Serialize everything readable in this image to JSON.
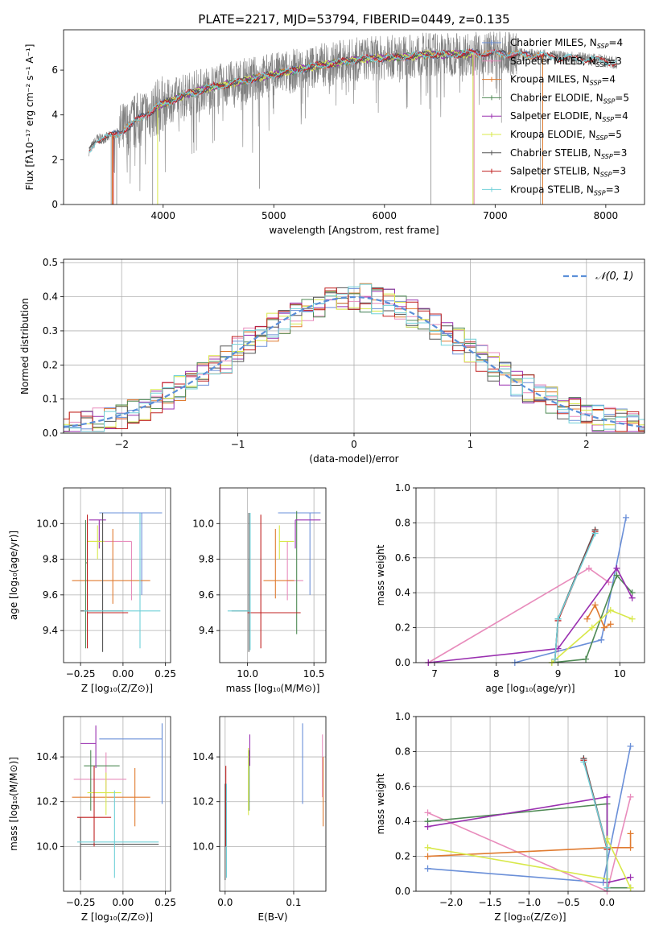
{
  "title": "PLATE=2217, MJD=53794, FIBERID=0449, z=0.135",
  "colors": {
    "chabrier_miles": "#6a8fd8",
    "salpeter_miles": "#e88cbc",
    "kroupa_miles": "#e07b30",
    "chabrier_elodie": "#4f8a55",
    "salpeter_elodie": "#9a30b0",
    "kroupa_elodie": "#d8e84a",
    "chabrier_stelib": "#555555",
    "salpeter_stelib": "#c02020",
    "kroupa_stelib": "#70d0d8",
    "data_spectrum": "#808080",
    "normal_curve": "#5b8fd8"
  },
  "chart_data": [
    {
      "id": "spectrum",
      "type": "line",
      "xlabel": "wavelength [Angstrom, rest frame]",
      "ylabel": "Flux [fλ10⁻¹⁷ erg cm⁻² s⁻¹ A⁻¹]",
      "xlim": [
        3100,
        8350
      ],
      "ylim": [
        0,
        7.8
      ],
      "xticks": [
        "4000",
        "5000",
        "6000",
        "7000",
        "8000"
      ],
      "yticks": [
        "0",
        "2",
        "4",
        "6"
      ],
      "legend_position": "upper-right",
      "data_x": [
        3330,
        3400,
        3500,
        3600,
        3700,
        3800,
        3900,
        4000,
        4200,
        4400,
        4600,
        4800,
        5000,
        5200,
        5400,
        5600,
        5800,
        6000,
        6200,
        6400,
        6600,
        6800,
        7000,
        7200,
        7400,
        7600,
        7800,
        8000,
        8100
      ],
      "data_y": [
        2.4,
        2.9,
        3.0,
        3.2,
        3.5,
        3.9,
        4.2,
        4.5,
        4.9,
        5.2,
        5.4,
        5.6,
        5.8,
        6.0,
        6.2,
        6.35,
        6.5,
        6.55,
        6.6,
        6.7,
        6.7,
        6.75,
        6.75,
        6.7,
        6.65,
        6.55,
        6.5,
        6.4,
        6.3
      ],
      "series": [
        {
          "name": "Chabrier MILES, N_SSP=4",
          "label_main": "Chabrier MILES, N",
          "label_sub": "SSP",
          "label_tail": "=4",
          "color_key": "chabrier_miles"
        },
        {
          "name": "Salpeter MILES, N_SSP=3",
          "label_main": "Salpeter MILES, N",
          "label_sub": "SSP",
          "label_tail": "=3",
          "color_key": "salpeter_miles"
        },
        {
          "name": "Kroupa MILES, N_SSP=4",
          "label_main": "Kroupa MILES, N",
          "label_sub": "SSP",
          "label_tail": "=4",
          "color_key": "kroupa_miles"
        },
        {
          "name": "Chabrier ELODIE, N_SSP=5",
          "label_main": "Chabrier ELODIE, N",
          "label_sub": "SSP",
          "label_tail": "=5",
          "color_key": "chabrier_elodie"
        },
        {
          "name": "Salpeter ELODIE, N_SSP=4",
          "label_main": "Salpeter ELODIE, N",
          "label_sub": "SSP",
          "label_tail": "=4",
          "color_key": "salpeter_elodie"
        },
        {
          "name": "Kroupa ELODIE, N_SSP=5",
          "label_main": "Kroupa ELODIE, N",
          "label_sub": "SSP",
          "label_tail": "=5",
          "color_key": "kroupa_elodie"
        },
        {
          "name": "Chabrier STELIB, N_SSP=3",
          "label_main": "Chabrier STELIB, N",
          "label_sub": "SSP",
          "label_tail": "=3",
          "color_key": "chabrier_stelib"
        },
        {
          "name": "Salpeter STELIB, N_SSP=3",
          "label_main": "Salpeter STELIB, N",
          "label_sub": "SSP",
          "label_tail": "=3",
          "color_key": "salpeter_stelib"
        },
        {
          "name": "Kroupa STELIB, N_SSP=3",
          "label_main": "Kroupa STELIB, N",
          "label_sub": "SSP",
          "label_tail": "=3",
          "color_key": "kroupa_stelib"
        }
      ]
    },
    {
      "id": "residuals",
      "type": "histogram",
      "xlabel": "(data-model)/error",
      "ylabel": "Normed distribution",
      "xlim": [
        -2.5,
        2.5
      ],
      "ylim": [
        0,
        0.51
      ],
      "xticks": [
        "−2",
        "−1",
        "0",
        "1",
        "2"
      ],
      "yticks": [
        "0.0",
        "0.1",
        "0.2",
        "0.3",
        "0.4",
        "0.5"
      ],
      "grid": true,
      "legend_label": "𝒩(0, 1)",
      "legend_position": "upper-right",
      "bin_width": 0.1
    },
    {
      "id": "age_vs_Z",
      "type": "errorbar",
      "xlabel": "Z [log₁₀(Z/Z⊙)]",
      "ylabel": "age  [log₁₀(age/yr)]",
      "xlim": [
        -0.35,
        0.28
      ],
      "ylim": [
        9.22,
        10.2
      ],
      "xticks": [
        "−0.25",
        "0.00",
        "0.25"
      ],
      "yticks": [
        "9.4",
        "9.6",
        "9.8",
        "10.0"
      ],
      "points": [
        {
          "s": "chabrier_miles",
          "x": 0.11,
          "xl": -0.14,
          "xh": 0.23,
          "y": 10.06,
          "yl": 9.6,
          "yh": 10.06
        },
        {
          "s": "salpeter_miles",
          "x": 0.05,
          "xl": -0.2,
          "xh": 0.05,
          "y": 9.9,
          "yl": 9.57,
          "yh": 9.9
        },
        {
          "s": "kroupa_miles",
          "x": -0.06,
          "xl": -0.3,
          "xh": 0.16,
          "y": 9.68,
          "yl": 9.55,
          "yh": 9.97
        },
        {
          "s": "chabrier_elodie",
          "x": -0.22,
          "xl": -0.22,
          "xh": -0.21,
          "y": 9.78,
          "yl": 9.3,
          "yh": 10.02
        },
        {
          "s": "salpeter_elodie",
          "x": -0.14,
          "xl": -0.2,
          "xh": -0.1,
          "y": 10.02,
          "yl": 9.86,
          "yh": 10.02
        },
        {
          "s": "kroupa_elodie",
          "x": -0.15,
          "xl": -0.21,
          "xh": -0.11,
          "y": 9.9,
          "yl": 9.8,
          "yh": 9.99
        },
        {
          "s": "chabrier_stelib",
          "x": -0.12,
          "xl": -0.25,
          "xh": 0.0,
          "y": 9.51,
          "yl": 9.28,
          "yh": 10.06
        },
        {
          "s": "salpeter_stelib",
          "x": -0.21,
          "xl": -0.21,
          "xh": 0.03,
          "y": 9.5,
          "yl": 9.3,
          "yh": 10.05
        },
        {
          "s": "kroupa_stelib",
          "x": 0.1,
          "xl": -0.23,
          "xh": 0.22,
          "y": 9.51,
          "yl": 9.3,
          "yh": 10.06
        }
      ]
    },
    {
      "id": "age_vs_mass",
      "type": "errorbar",
      "xlabel": "mass [log₁₀(M/M⊙)]",
      "ylabel": "",
      "xlim": [
        9.79,
        10.59
      ],
      "ylim": [
        9.22,
        10.2
      ],
      "xticks": [
        "10.0",
        "10.5"
      ],
      "yticks": [
        "9.4",
        "9.6",
        "9.8",
        "10.0"
      ],
      "points": [
        {
          "s": "chabrier_miles",
          "x": 10.47,
          "xl": 10.23,
          "xh": 10.55,
          "y": 10.06,
          "yl": 9.6,
          "yh": 10.06
        },
        {
          "s": "salpeter_miles",
          "x": 10.3,
          "xl": 10.3,
          "xh": 10.42,
          "y": 9.68,
          "yl": 9.57,
          "yh": 9.9
        },
        {
          "s": "kroupa_miles",
          "x": 10.21,
          "xl": 10.12,
          "xh": 10.35,
          "y": 9.68,
          "yl": 9.58,
          "yh": 9.97
        },
        {
          "s": "chabrier_elodie",
          "x": 10.37,
          "xl": 10.37,
          "xh": 10.37,
          "y": 9.79,
          "yl": 9.38,
          "yh": 10.07
        },
        {
          "s": "salpeter_elodie",
          "x": 10.36,
          "xl": 10.36,
          "xh": 10.55,
          "y": 10.02,
          "yl": 9.86,
          "yh": 10.02
        },
        {
          "s": "kroupa_elodie",
          "x": 10.24,
          "xl": 10.24,
          "xh": 10.35,
          "y": 9.9,
          "yl": 9.8,
          "yh": 9.99
        },
        {
          "s": "chabrier_stelib",
          "x": 10.01,
          "xl": 9.88,
          "xh": 10.02,
          "y": 9.51,
          "yl": 9.28,
          "yh": 10.06
        },
        {
          "s": "salpeter_stelib",
          "x": 10.1,
          "xl": 10.0,
          "xh": 10.4,
          "y": 9.5,
          "yl": 9.3,
          "yh": 10.05
        },
        {
          "s": "kroupa_stelib",
          "x": 10.02,
          "xl": 9.85,
          "xh": 10.02,
          "y": 9.51,
          "yl": 9.29,
          "yh": 10.06
        }
      ]
    },
    {
      "id": "weight_vs_age",
      "type": "line",
      "xlabel": "age  [log₁₀(age/yr)]",
      "ylabel": "mass weight",
      "xlim": [
        6.7,
        10.4
      ],
      "ylim": [
        0,
        1.0
      ],
      "xticks": [
        "7",
        "8",
        "9",
        "10"
      ],
      "yticks": [
        "0.0",
        "0.2",
        "0.4",
        "0.6",
        "0.8",
        "1.0"
      ],
      "grid": true,
      "series": [
        {
          "s": "chabrier_miles",
          "x": [
            8.3,
            9.7,
            10.1
          ],
          "y": [
            0.0,
            0.13,
            0.83
          ]
        },
        {
          "s": "salpeter_miles",
          "x": [
            6.9,
            9.5,
            9.82
          ],
          "y": [
            0.0,
            0.54,
            0.46
          ]
        },
        {
          "s": "kroupa_miles",
          "x": [
            9.47,
            9.6,
            9.75,
            9.85
          ],
          "y": [
            0.25,
            0.33,
            0.2,
            0.22
          ]
        },
        {
          "s": "chabrier_elodie",
          "x": [
            8.9,
            9.45,
            9.95,
            10.2
          ],
          "y": [
            0.0,
            0.02,
            0.5,
            0.4
          ]
        },
        {
          "s": "salpeter_elodie",
          "x": [
            6.9,
            9.0,
            9.95,
            10.2
          ],
          "y": [
            0.0,
            0.08,
            0.54,
            0.37
          ]
        },
        {
          "s": "kroupa_elodie",
          "x": [
            8.9,
            9.55,
            9.85,
            10.2
          ],
          "y": [
            0.0,
            0.2,
            0.3,
            0.25
          ]
        },
        {
          "s": "chabrier_stelib",
          "x": [
            8.95,
            9.0,
            9.6
          ],
          "y": [
            0.02,
            0.25,
            0.76
          ]
        },
        {
          "s": "salpeter_stelib",
          "x": [
            8.95,
            9.0,
            9.6
          ],
          "y": [
            0.02,
            0.24,
            0.75
          ]
        },
        {
          "s": "kroupa_stelib",
          "x": [
            8.95,
            9.0,
            9.6
          ],
          "y": [
            0.02,
            0.25,
            0.74
          ]
        }
      ]
    },
    {
      "id": "mass_vs_Z",
      "type": "errorbar",
      "xlabel": "Z [log₁₀(Z/Z⊙)]",
      "ylabel": "mass [log₁₀(M/M⊙)]",
      "xlim": [
        -0.35,
        0.28
      ],
      "ylim": [
        9.8,
        10.58
      ],
      "xticks": [
        "−0.25",
        "0.00",
        "0.25"
      ],
      "yticks": [
        "10.0",
        "10.2",
        "10.4"
      ],
      "points": [
        {
          "s": "chabrier_miles",
          "x": 0.23,
          "xl": -0.14,
          "xh": 0.23,
          "y": 10.48,
          "yl": 10.19,
          "yh": 10.55
        },
        {
          "s": "salpeter_miles",
          "x": -0.1,
          "xl": -0.29,
          "xh": 0.02,
          "y": 10.3,
          "yl": 10.22,
          "yh": 10.42
        },
        {
          "s": "kroupa_miles",
          "x": 0.07,
          "xl": -0.3,
          "xh": 0.16,
          "y": 10.22,
          "yl": 10.09,
          "yh": 10.35
        },
        {
          "s": "chabrier_elodie",
          "x": -0.19,
          "xl": -0.23,
          "xh": -0.02,
          "y": 10.36,
          "yl": 10.16,
          "yh": 10.43
        },
        {
          "s": "salpeter_elodie",
          "x": -0.16,
          "xl": -0.25,
          "xh": -0.16,
          "y": 10.46,
          "yl": 10.35,
          "yh": 10.54
        },
        {
          "s": "kroupa_elodie",
          "x": -0.1,
          "xl": -0.21,
          "xh": -0.01,
          "y": 10.24,
          "yl": 10.14,
          "yh": 10.33
        },
        {
          "s": "chabrier_stelib",
          "x": -0.25,
          "xl": -0.25,
          "xh": 0.21,
          "y": 10.01,
          "yl": 9.85,
          "yh": 10.13
        },
        {
          "s": "salpeter_stelib",
          "x": -0.17,
          "xl": -0.27,
          "xh": -0.07,
          "y": 10.13,
          "yl": 10.0,
          "yh": 10.36
        },
        {
          "s": "kroupa_stelib",
          "x": -0.05,
          "xl": -0.27,
          "xh": 0.21,
          "y": 10.02,
          "yl": 9.86,
          "yh": 10.25
        }
      ]
    },
    {
      "id": "mass_vs_ebv",
      "type": "errorbar",
      "xlabel": "E(B-V)",
      "ylabel": "",
      "xlim": [
        -0.008,
        0.147
      ],
      "ylim": [
        9.8,
        10.58
      ],
      "xticks": [
        "0.0",
        "0.1"
      ],
      "yticks": [
        "10.0",
        "10.2",
        "10.4"
      ],
      "points": [
        {
          "s": "chabrier_miles",
          "x": 0.113,
          "xl": 0.113,
          "xh": 0.113,
          "y": 10.48,
          "yl": 10.19,
          "yh": 10.55
        },
        {
          "s": "salpeter_miles",
          "x": 0.142,
          "xl": 0.142,
          "xh": 0.142,
          "y": 10.3,
          "yl": 10.22,
          "yh": 10.5
        },
        {
          "s": "kroupa_miles",
          "x": 0.143,
          "xl": 0.143,
          "xh": 0.143,
          "y": 10.22,
          "yl": 10.09,
          "yh": 10.4
        },
        {
          "s": "chabrier_elodie",
          "x": 0.035,
          "xl": 0.035,
          "xh": 0.035,
          "y": 10.36,
          "yl": 10.16,
          "yh": 10.43
        },
        {
          "s": "salpeter_elodie",
          "x": 0.036,
          "xl": 0.036,
          "xh": 0.036,
          "y": 10.46,
          "yl": 10.36,
          "yh": 10.5
        },
        {
          "s": "kroupa_elodie",
          "x": 0.034,
          "xl": 0.034,
          "xh": 0.034,
          "y": 10.24,
          "yl": 10.14,
          "yh": 10.44
        },
        {
          "s": "chabrier_stelib",
          "x": 0.0,
          "xl": 0.0,
          "xh": 0.0,
          "y": 10.01,
          "yl": 9.85,
          "yh": 10.28
        },
        {
          "s": "salpeter_stelib",
          "x": 0.001,
          "xl": 0.001,
          "xh": 0.001,
          "y": 10.13,
          "yl": 10.0,
          "yh": 10.36
        },
        {
          "s": "kroupa_stelib",
          "x": 0.002,
          "xl": 0.002,
          "xh": 0.002,
          "y": 10.02,
          "yl": 9.86,
          "yh": 10.28
        }
      ]
    },
    {
      "id": "weight_vs_Z",
      "type": "line",
      "xlabel": "Z [log₁₀(Z/Z⊙)]",
      "ylabel": "mass weight",
      "xlim": [
        -2.45,
        0.48
      ],
      "ylim": [
        0,
        1.0
      ],
      "xticks": [
        "−2.0",
        "−1.5",
        "−1.0",
        "−0.5",
        "0.0"
      ],
      "yticks": [
        "0.0",
        "0.2",
        "0.4",
        "0.6",
        "0.8",
        "1.0"
      ],
      "grid": true,
      "series": [
        {
          "s": "chabrier_miles",
          "x": [
            -2.3,
            -0.05,
            0.3
          ],
          "y": [
            0.13,
            0.05,
            0.83
          ]
        },
        {
          "s": "salpeter_miles",
          "x": [
            -2.3,
            0.0,
            0.3
          ],
          "y": [
            0.45,
            0.0,
            0.54
          ]
        },
        {
          "s": "kroupa_miles",
          "x": [
            -2.3,
            0.0,
            0.3,
            0.3
          ],
          "y": [
            0.2,
            0.25,
            0.25,
            0.33
          ]
        },
        {
          "s": "chabrier_elodie",
          "x": [
            -2.3,
            0.0,
            0.0,
            0.3
          ],
          "y": [
            0.4,
            0.5,
            0.02,
            0.02
          ]
        },
        {
          "s": "salpeter_elodie",
          "x": [
            -2.3,
            0.0,
            0.0,
            0.3
          ],
          "y": [
            0.37,
            0.54,
            0.05,
            0.08
          ]
        },
        {
          "s": "kroupa_elodie",
          "x": [
            -2.3,
            0.0,
            0.0,
            0.3
          ],
          "y": [
            0.25,
            0.07,
            0.3,
            0.02
          ]
        },
        {
          "s": "chabrier_stelib",
          "x": [
            -0.3,
            0.0,
            0.0
          ],
          "y": [
            0.76,
            0.25,
            0.02
          ]
        },
        {
          "s": "salpeter_stelib",
          "x": [
            -0.3,
            0.0,
            0.0
          ],
          "y": [
            0.75,
            0.24,
            0.02
          ]
        },
        {
          "s": "kroupa_stelib",
          "x": [
            -0.3,
            0.0,
            0.0
          ],
          "y": [
            0.74,
            0.25,
            0.02
          ]
        }
      ]
    }
  ]
}
